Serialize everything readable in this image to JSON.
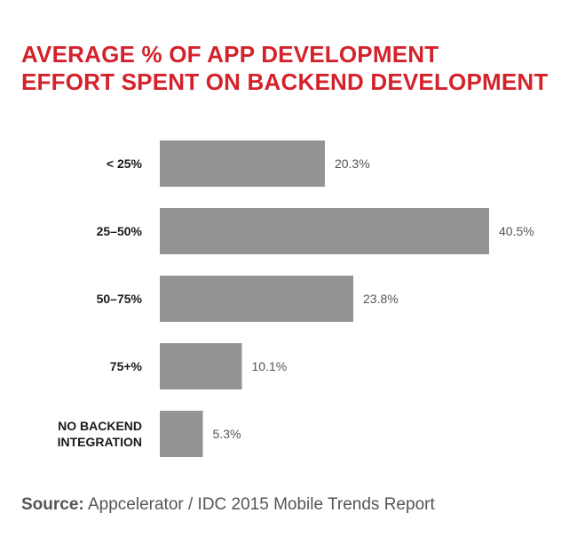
{
  "title_lines": [
    "AVERAGE % OF APP DEVELOPMENT",
    "EFFORT SPENT ON BACKEND DEVELOPMENT"
  ],
  "colors": {
    "title": "#d4222b",
    "bar": "#939393",
    "text": "#1a1a1a",
    "value": "#555555"
  },
  "chart_data": {
    "type": "bar",
    "orientation": "horizontal",
    "title": "AVERAGE % OF APP DEVELOPMENT EFFORT SPENT ON BACKEND DEVELOPMENT",
    "categories": [
      "< 25%",
      "25–50%",
      "50–75%",
      "75+%",
      "NO BACKEND INTEGRATION"
    ],
    "category_lines": [
      [
        "< 25%"
      ],
      [
        "25–50%"
      ],
      [
        "50–75%"
      ],
      [
        "75+%"
      ],
      [
        "NO BACKEND",
        "INTEGRATION"
      ]
    ],
    "values": [
      20.3,
      40.5,
      23.8,
      10.1,
      5.3
    ],
    "value_labels": [
      "20.3%",
      "40.5%",
      "23.8%",
      "10.1%",
      "5.3%"
    ],
    "xlim": [
      0,
      40.5
    ],
    "xlabel": "",
    "ylabel": "",
    "grid": false,
    "legend": "none"
  },
  "source": {
    "label": "Source:",
    "text": "Appcelerator / IDC 2015 Mobile Trends Report"
  }
}
